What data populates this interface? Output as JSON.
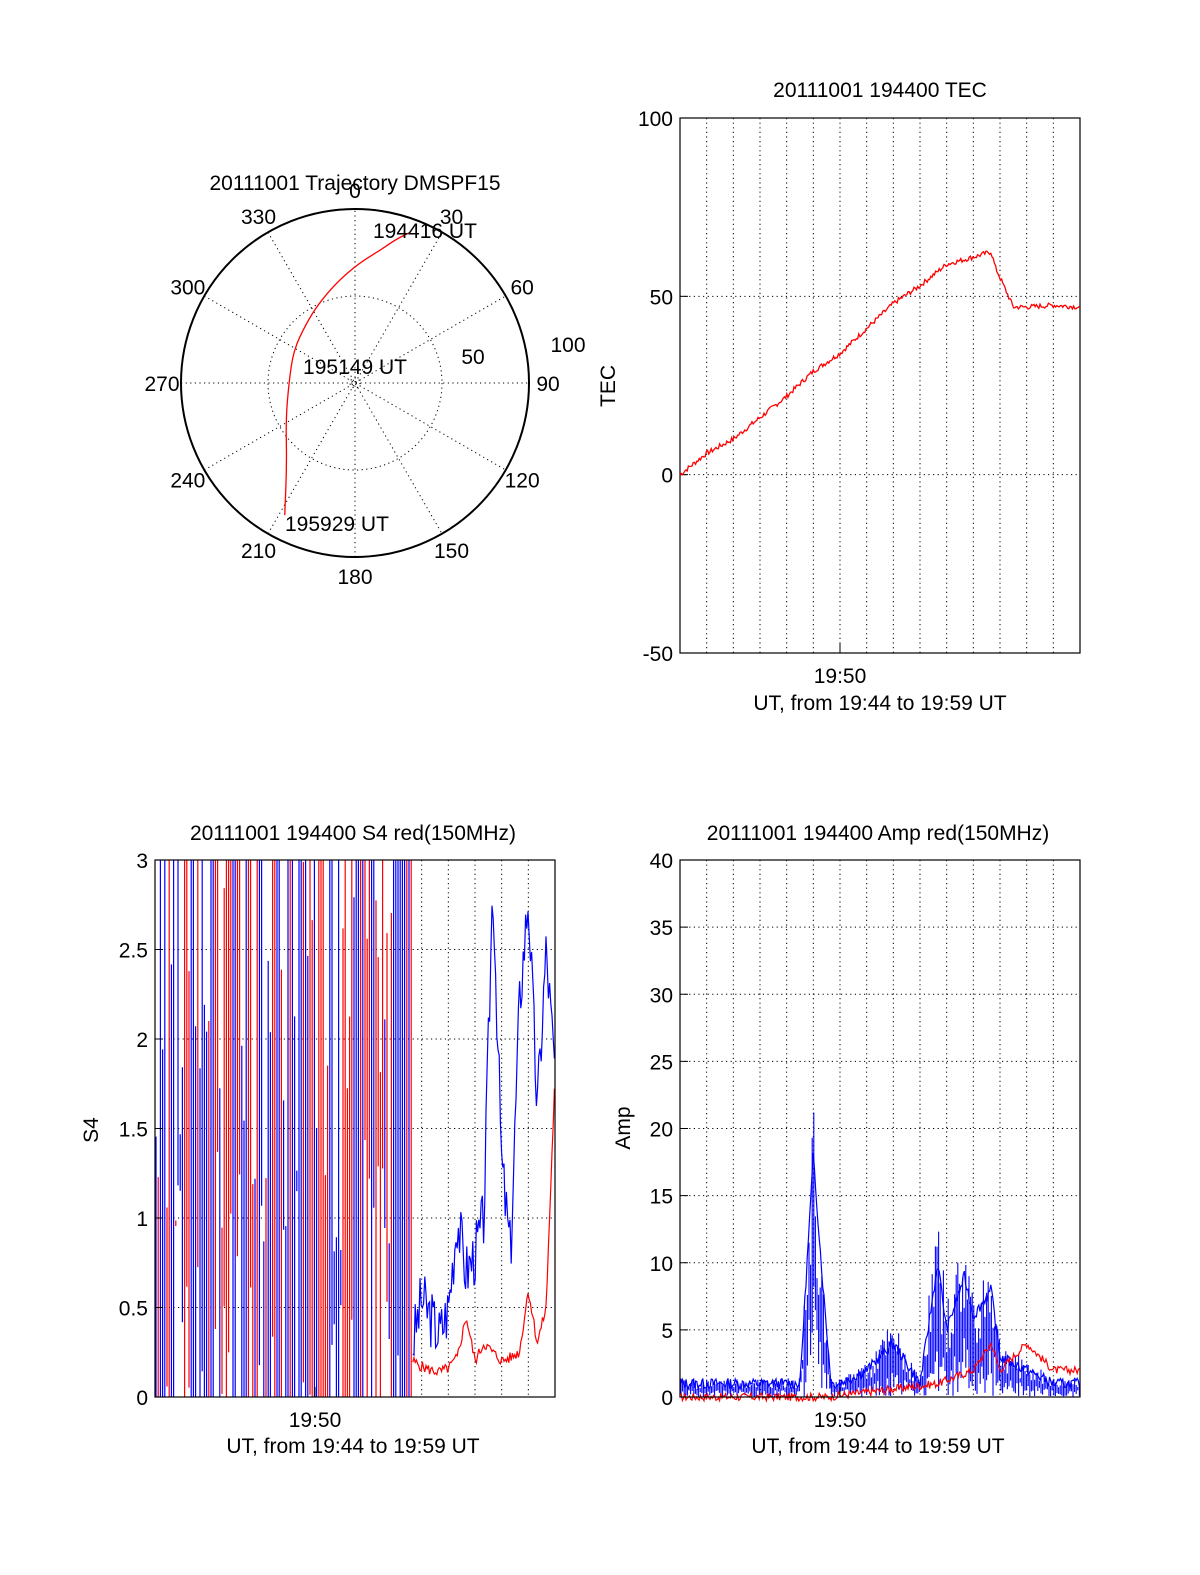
{
  "chart_data": [
    {
      "type": "polar",
      "title": "20111001 Trajectory DMSPF15",
      "angle_labels": [
        "0",
        "30",
        "60",
        "90",
        "120",
        "150",
        "180",
        "210",
        "240",
        "270",
        "300",
        "330"
      ],
      "radius_labels": [
        "50",
        "100"
      ],
      "rlim": [
        0,
        100
      ],
      "grid": true,
      "series": [
        {
          "color": "#ff0000",
          "points": [
            [
              20,
              92
            ],
            [
              16,
              86
            ],
            [
              11,
              78
            ],
            [
              2,
              69
            ],
            [
              -10,
              59
            ],
            [
              -25,
              50
            ],
            [
              -40,
              44
            ],
            [
              -62,
              40
            ],
            [
              -90,
              38
            ],
            [
              -118,
              45
            ],
            [
              -140,
              61
            ],
            [
              -152,
              86
            ]
          ]
        }
      ],
      "annotations": [
        {
          "text": "194416 UT",
          "angle": 20,
          "r": 92
        },
        {
          "text": "195149 UT",
          "angle": -90,
          "r": 0
        },
        {
          "text": "195929 UT",
          "angle": -152,
          "r": 86
        }
      ]
    },
    {
      "type": "line",
      "title": "20111001 194400 TEC",
      "xlabel": "UT, from 19:44 to 19:59 UT",
      "ylabel": "TEC",
      "xlim": [
        "19:44",
        "19:59"
      ],
      "ylim": [
        -50,
        100
      ],
      "yticks": [
        "100",
        "50",
        "0",
        "-50"
      ],
      "xticks": [
        "19:50"
      ],
      "grid": true,
      "series": [
        {
          "color": "#ff0000",
          "x": [
            "19:44:00",
            "19:45:00",
            "19:46:00",
            "19:47:00",
            "19:48:00",
            "19:49:00",
            "19:50:00",
            "19:51:00",
            "19:52:00",
            "19:53:00",
            "19:54:00",
            "19:55:00",
            "19:55:40",
            "19:55:50",
            "19:56:30",
            "19:57:00",
            "19:58:00",
            "19:59:00"
          ],
          "y": [
            0,
            6,
            10,
            16,
            22,
            29,
            34,
            41,
            48,
            53,
            59,
            61,
            62.5,
            58,
            47,
            47,
            47.5,
            47
          ]
        }
      ]
    },
    {
      "type": "line",
      "title": "20111001 194400 S4 red(150MHz)",
      "xlabel": "UT, from 19:44 to 19:59 UT",
      "ylabel": "S4",
      "xlim": [
        "19:44",
        "19:59"
      ],
      "ylim": [
        0,
        3
      ],
      "yticks": [
        "3",
        "2.5",
        "2",
        "1.5",
        "1",
        "0.5",
        "0"
      ],
      "xticks": [
        "19:50"
      ],
      "grid": true,
      "series": [
        {
          "color": "#0000ff",
          "x": [
            "19:53:40",
            "19:54:00",
            "19:54:20",
            "19:54:40",
            "19:55:00",
            "19:55:20",
            "19:55:40",
            "19:56:00",
            "19:56:20",
            "19:56:40",
            "19:57:00",
            "19:57:20",
            "19:57:40",
            "19:58:00",
            "19:58:20",
            "19:58:40",
            "19:59:00"
          ],
          "y": [
            0.3,
            0.55,
            0.45,
            0.35,
            0.5,
            1.0,
            0.7,
            0.8,
            1.0,
            2.9,
            1.3,
            0.8,
            2.2,
            2.8,
            1.6,
            2.5,
            1.8
          ]
        },
        {
          "color": "#ff0000",
          "x": [
            "19:53:40",
            "19:54:00",
            "19:54:20",
            "19:54:40",
            "19:55:00",
            "19:55:20",
            "19:55:40",
            "19:56:00",
            "19:56:20",
            "19:56:40",
            "19:57:00",
            "19:57:20",
            "19:57:40",
            "19:58:00",
            "19:58:20",
            "19:58:40",
            "19:59:00"
          ],
          "y": [
            0.2,
            0.17,
            0.15,
            0.14,
            0.16,
            0.22,
            0.45,
            0.2,
            0.3,
            0.25,
            0.2,
            0.22,
            0.25,
            0.6,
            0.3,
            0.5,
            1.8
          ]
        }
      ]
    },
    {
      "type": "line",
      "title": "20111001 194400 Amp red(150MHz)",
      "xlabel": "UT, from 19:44 to 19:59 UT",
      "ylabel": "Amp",
      "xlim": [
        "19:44",
        "19:59"
      ],
      "ylim": [
        0,
        40
      ],
      "yticks": [
        "40",
        "35",
        "30",
        "25",
        "20",
        "15",
        "10",
        "5",
        "0"
      ],
      "xticks": [
        "19:50"
      ],
      "grid": true,
      "series": [
        {
          "color": "#0000ff",
          "x": [
            "19:44:00",
            "19:48:00",
            "19:48:30",
            "19:49:00",
            "19:49:20",
            "19:49:40",
            "19:50:00",
            "19:51:00",
            "19:52:00",
            "19:53:00",
            "19:53:40",
            "19:54:00",
            "19:54:40",
            "19:55:00",
            "19:55:40",
            "19:56:00",
            "19:57:00",
            "19:58:00",
            "19:59:00"
          ],
          "y": [
            1,
            1,
            1,
            18,
            9,
            1,
            1,
            2,
            4,
            1,
            10,
            5,
            9,
            6,
            8,
            3,
            2,
            1,
            1
          ]
        },
        {
          "color": "#ff0000",
          "x": [
            "19:44:00",
            "19:48:30",
            "19:49:30",
            "19:53:40",
            "19:55:00",
            "19:55:40",
            "19:56:00",
            "19:57:00",
            "19:58:00",
            "19:59:00"
          ],
          "y": [
            0,
            0,
            0,
            1,
            2,
            4,
            2,
            4,
            2,
            2
          ]
        }
      ]
    }
  ]
}
